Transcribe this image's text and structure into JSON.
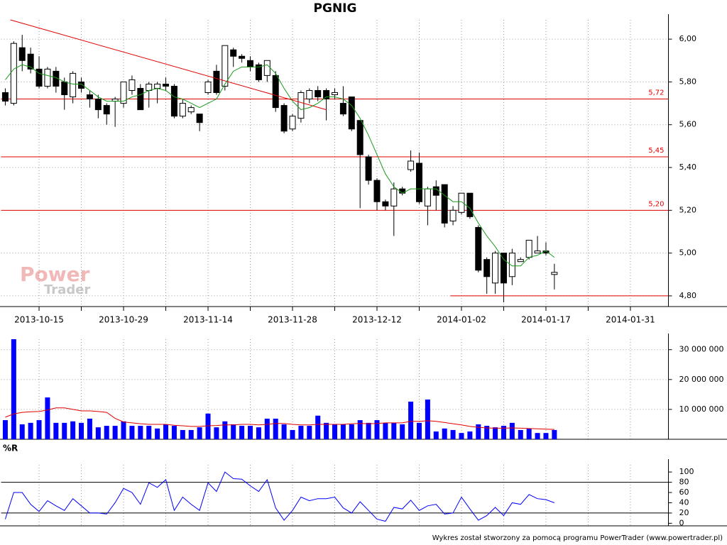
{
  "chart_data": [
    {
      "type": "candlestick",
      "title": "PGNIG",
      "xlim": [
        -0.5,
        78.5
      ],
      "xticks": [
        {
          "value": 4,
          "label": "2013-10-15"
        },
        {
          "value": 14,
          "label": "2013-10-29"
        },
        {
          "value": 24,
          "label": "2013-11-14"
        },
        {
          "value": 34,
          "label": "2013-11-28"
        },
        {
          "value": 44,
          "label": "2013-12-12"
        },
        {
          "value": 54,
          "label": "2014-01-02"
        },
        {
          "value": 64,
          "label": "2014-01-17"
        },
        {
          "value": 74,
          "label": "2014-01-31"
        }
      ],
      "xminorticks": [
        -1,
        9,
        19,
        29,
        39,
        49,
        59,
        69
      ],
      "ylim": [
        4.75,
        6.09
      ],
      "yticks": [
        {
          "value": 4.8,
          "label": "4,80"
        },
        {
          "value": 5.0,
          "label": "5,00"
        },
        {
          "value": 5.2,
          "label": "5,20"
        },
        {
          "value": 5.4,
          "label": "5,40"
        },
        {
          "value": 5.6,
          "label": "5,60"
        },
        {
          "value": 5.8,
          "label": "5,80"
        },
        {
          "value": 6.0,
          "label": "6,00"
        }
      ],
      "grid": true,
      "ygrid": true,
      "up_color": "#ffffff",
      "down_color": "#000000",
      "open": [
        5.75,
        5.7,
        5.96,
        5.93,
        5.86,
        5.78,
        5.85,
        5.8,
        5.73,
        5.8,
        5.74,
        5.72,
        5.69,
        5.71,
        5.7,
        5.76,
        5.77,
        5.76,
        5.77,
        5.79,
        5.78,
        5.64,
        5.66,
        5.65,
        5.75,
        5.85,
        5.78,
        5.95,
        5.92,
        5.9,
        5.88,
        5.83,
        5.83,
        5.69,
        5.58,
        5.63,
        5.72,
        5.76,
        5.76,
        5.74,
        5.7,
        5.73,
        5.62,
        5.45,
        5.34,
        5.24,
        5.22,
        5.3,
        5.39,
        5.42,
        5.22,
        5.31,
        5.32,
        5.15,
        5.19,
        5.28,
        5.12,
        4.97,
        4.86,
        5.0,
        4.89,
        4.96,
        4.98,
        5.0,
        5.01,
        4.9
      ],
      "high": [
        5.77,
        5.99,
        6.02,
        5.96,
        5.92,
        5.87,
        5.87,
        5.82,
        5.85,
        5.82,
        5.76,
        5.74,
        5.7,
        5.73,
        5.8,
        5.83,
        5.79,
        5.8,
        5.8,
        5.82,
        5.79,
        5.72,
        5.69,
        5.65,
        5.81,
        5.88,
        5.97,
        5.96,
        5.93,
        5.92,
        5.89,
        5.9,
        5.85,
        5.7,
        5.65,
        5.76,
        5.77,
        5.78,
        5.77,
        5.77,
        5.78,
        5.73,
        5.62,
        5.46,
        5.35,
        5.25,
        5.33,
        5.31,
        5.48,
        5.47,
        5.31,
        5.34,
        5.32,
        5.22,
        5.28,
        5.28,
        5.13,
        4.98,
        5.01,
        5.0,
        5.02,
        4.98,
        5.06,
        5.08,
        5.05,
        4.95
      ],
      "low": [
        5.69,
        5.69,
        5.85,
        5.84,
        5.77,
        5.77,
        5.75,
        5.67,
        5.7,
        5.75,
        5.68,
        5.63,
        5.6,
        5.59,
        5.68,
        5.74,
        5.67,
        5.68,
        5.7,
        5.76,
        5.63,
        5.63,
        5.65,
        5.57,
        5.74,
        5.74,
        5.76,
        5.87,
        5.89,
        5.85,
        5.8,
        5.8,
        5.66,
        5.56,
        5.57,
        5.61,
        5.7,
        5.71,
        5.62,
        5.72,
        5.64,
        5.57,
        5.21,
        5.32,
        5.2,
        5.2,
        5.08,
        5.27,
        5.38,
        5.23,
        5.13,
        5.2,
        5.12,
        5.13,
        5.18,
        5.16,
        4.91,
        4.81,
        4.81,
        4.77,
        4.85,
        4.96,
        4.97,
        5.0,
        4.99,
        4.83
      ],
      "close": [
        5.71,
        5.98,
        5.9,
        5.86,
        5.78,
        5.86,
        5.78,
        5.74,
        5.84,
        5.77,
        5.72,
        5.67,
        5.65,
        5.72,
        5.8,
        5.81,
        5.67,
        5.79,
        5.79,
        5.78,
        5.64,
        5.7,
        5.68,
        5.61,
        5.8,
        5.75,
        5.97,
        5.92,
        5.91,
        5.87,
        5.81,
        5.9,
        5.68,
        5.57,
        5.64,
        5.75,
        5.76,
        5.73,
        5.72,
        5.75,
        5.65,
        5.58,
        5.46,
        5.34,
        5.24,
        5.22,
        5.3,
        5.28,
        5.43,
        5.24,
        5.3,
        5.27,
        5.14,
        5.2,
        5.28,
        5.17,
        4.92,
        4.89,
        5.0,
        4.86,
        5.0,
        4.97,
        5.06,
        5.01,
        5.0,
        4.91
      ],
      "overlays": [
        {
          "color": "#1a9a1a",
          "values": [
            5.81,
            5.86,
            5.88,
            5.87,
            5.84,
            5.83,
            5.82,
            5.8,
            5.79,
            5.79,
            5.76,
            5.73,
            5.71,
            5.71,
            5.71,
            5.73,
            5.74,
            5.76,
            5.77,
            5.76,
            5.73,
            5.72,
            5.7,
            5.68,
            5.7,
            5.72,
            5.79,
            5.85,
            5.87,
            5.87,
            5.87,
            5.88,
            5.84,
            5.77,
            5.71,
            5.67,
            5.68,
            5.7,
            5.73,
            5.73,
            5.72,
            5.69,
            5.63,
            5.55,
            5.46,
            5.37,
            5.31,
            5.28,
            5.3,
            5.3,
            5.3,
            5.3,
            5.27,
            5.24,
            5.24,
            5.21,
            5.14,
            5.08,
            5.03,
            4.97,
            4.94,
            4.94,
            4.98,
            4.99,
            5.01,
            4.98
          ]
        }
      ],
      "levels": [
        {
          "value": 5.72,
          "label": "5,72"
        },
        {
          "value": 5.45,
          "label": "5,45"
        },
        {
          "value": 5.2,
          "label": "5,20"
        }
      ],
      "level_color": "#e00000",
      "support": 4.8,
      "trendline": {
        "points": [
          [
            0.6,
            6.09
          ],
          [
            38,
            5.67
          ]
        ],
        "color": "#e00000"
      }
    },
    {
      "type": "bar",
      "values": [
        6400000,
        33500000,
        5000000,
        5500000,
        6400000,
        14000000,
        5500000,
        5500000,
        6000000,
        5500000,
        6900000,
        4000000,
        4500000,
        4500000,
        6000000,
        4500000,
        4500000,
        4500000,
        3600000,
        5000000,
        4500000,
        3100000,
        3100000,
        4000000,
        8600000,
        4000000,
        6000000,
        5000000,
        4500000,
        4500000,
        4000000,
        6900000,
        6900000,
        5000000,
        3100000,
        4500000,
        4500000,
        7900000,
        5500000,
        5000000,
        5000000,
        5000000,
        6400000,
        5500000,
        6400000,
        5500000,
        5500000,
        5000000,
        12600000,
        5500000,
        13300000,
        2600000,
        3600000,
        3100000,
        2100000,
        2600000,
        5000000,
        4500000,
        4000000,
        4500000,
        5500000,
        3100000,
        3600000,
        2100000,
        2100000,
        3100000
      ],
      "color": "#0000ff",
      "ylim": [
        0,
        33500000
      ],
      "yticks": [
        {
          "value": 10000000,
          "label": "10 000 000"
        },
        {
          "value": 20000000,
          "label": "20 000 000"
        },
        {
          "value": 30000000,
          "label": "30 000 000"
        }
      ],
      "grid": true,
      "ygrid": true,
      "overlays": [
        {
          "color": "#e00000",
          "values": [
            7400000,
            8500000,
            9000000,
            9200000,
            9300000,
            9800000,
            10500000,
            10500000,
            10000000,
            9500000,
            9500000,
            9300000,
            9000000,
            7000000,
            5800000,
            5500000,
            5200000,
            5000000,
            5000000,
            5000000,
            4700000,
            4500000,
            4300000,
            4300000,
            4500000,
            4600000,
            4800000,
            4800000,
            5000000,
            5000000,
            4800000,
            5000000,
            5300000,
            5300000,
            5000000,
            4800000,
            4800000,
            5000000,
            5000000,
            5000000,
            5000000,
            5200000,
            5300000,
            5200000,
            5300000,
            5500000,
            5500000,
            5500000,
            6000000,
            6000000,
            6200000,
            6000000,
            5600000,
            5200000,
            4800000,
            4300000,
            4000000,
            3800000,
            3700000,
            3700000,
            3800000,
            3700000,
            3600000,
            3500000,
            3400000,
            3300000
          ]
        }
      ]
    },
    {
      "type": "line",
      "title": "%R",
      "values": [
        8,
        60,
        60,
        37,
        23,
        44,
        34,
        25,
        48,
        34,
        20,
        20,
        18,
        40,
        68,
        60,
        37,
        79,
        70,
        85,
        25,
        51,
        37,
        25,
        79,
        62,
        100,
        87,
        86,
        73,
        62,
        85,
        30,
        6,
        25,
        51,
        44,
        48,
        48,
        51,
        30,
        20,
        42,
        25,
        8,
        4,
        31,
        28,
        45,
        25,
        34,
        37,
        18,
        20,
        51,
        28,
        6,
        15,
        31,
        15,
        40,
        37,
        56,
        48,
        46,
        40
      ],
      "color": "#0000ff",
      "ylim": [
        -5,
        114
      ],
      "yticks": [
        0,
        20,
        40,
        60,
        80,
        100
      ],
      "grid": true,
      "ygrid": false,
      "levels": [
        {
          "value": 80
        },
        {
          "value": 20
        }
      ],
      "level_color": "#000000"
    }
  ],
  "footer": "Wykres został stworzony za pomocą programu PowerTrader (www.powertrader.pl)",
  "watermark": [
    "Power",
    "Trader"
  ]
}
